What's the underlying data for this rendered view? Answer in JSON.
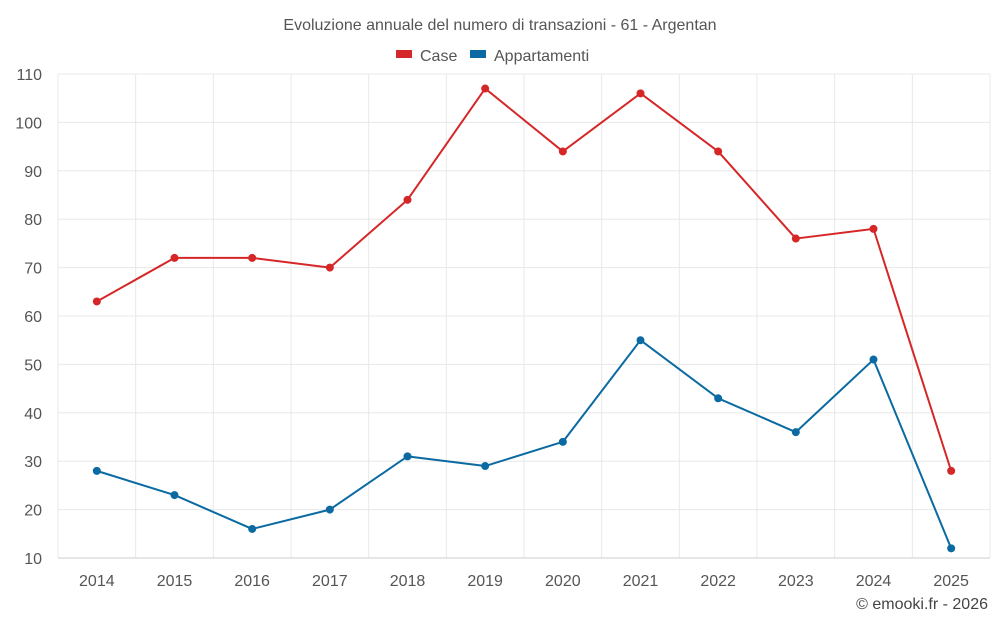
{
  "chart_data": {
    "type": "line",
    "title": "Evoluzione annuale del numero di transazioni - 61 - Argentan",
    "categories": [
      "2014",
      "2015",
      "2016",
      "2017",
      "2018",
      "2019",
      "2020",
      "2021",
      "2022",
      "2023",
      "2024",
      "2025"
    ],
    "series": [
      {
        "name": "Case",
        "color": "#d62728",
        "values": [
          63,
          72,
          72,
          70,
          84,
          107,
          94,
          106,
          94,
          76,
          78,
          28
        ]
      },
      {
        "name": "Appartamenti",
        "color": "#0a6aa1",
        "values": [
          28,
          23,
          16,
          20,
          31,
          29,
          34,
          55,
          43,
          36,
          51,
          12
        ]
      }
    ],
    "ylim": [
      10,
      110
    ],
    "yticks": [
      10,
      20,
      30,
      40,
      50,
      60,
      70,
      80,
      90,
      100,
      110
    ],
    "xlabel": "",
    "ylabel": "",
    "legend": "top-center",
    "grid": true
  },
  "credit": "© emooki.fr - 2026"
}
